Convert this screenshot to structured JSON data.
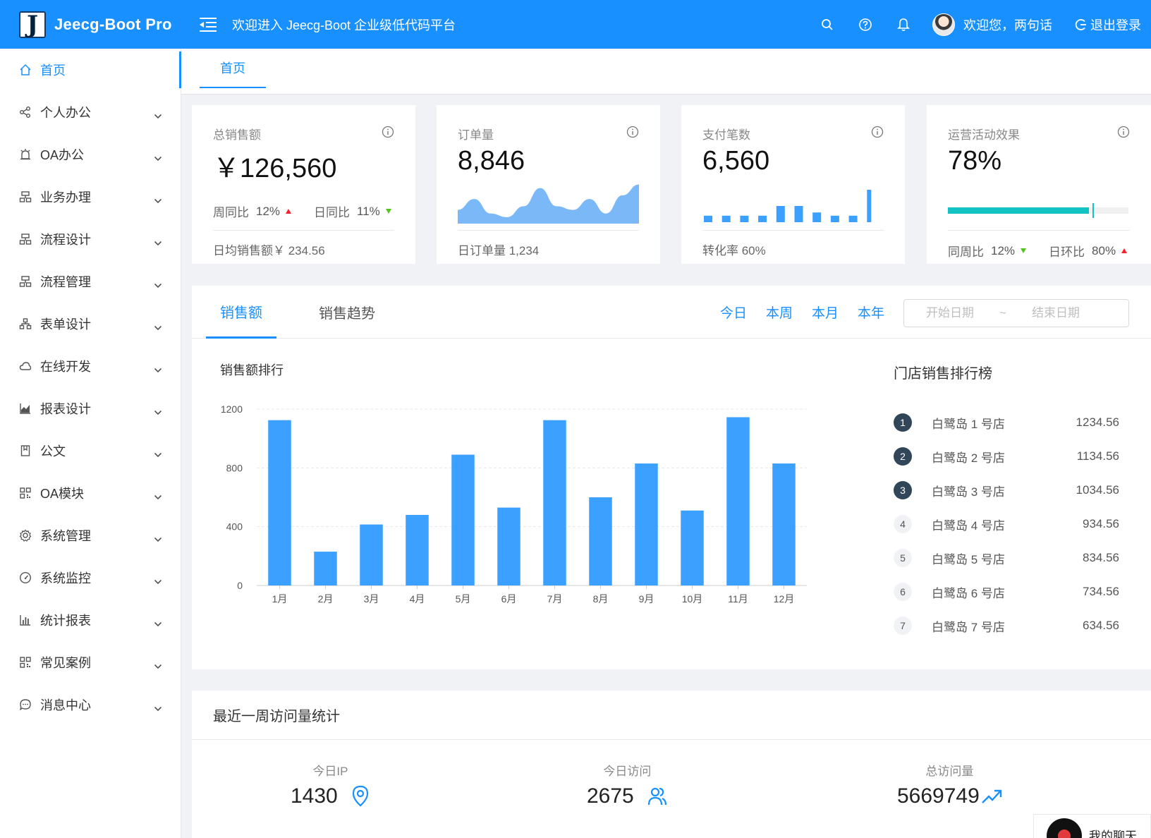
{
  "header": {
    "app_name": "Jeecg-Boot Pro",
    "logo_letter": "J",
    "welcome": "欢迎进入 Jeecg-Boot 企业级低代码平台",
    "user_greeting": "欢迎您，两句话",
    "logout_label": "退出登录",
    "accent": "#1890ff"
  },
  "sidebar": {
    "items": [
      {
        "label": "首页",
        "icon": "home-icon"
      },
      {
        "label": "个人办公",
        "icon": "share-icon"
      },
      {
        "label": "OA办公",
        "icon": "alarm-icon"
      },
      {
        "label": "业务办理",
        "icon": "cluster-icon"
      },
      {
        "label": "流程设计",
        "icon": "cluster-icon"
      },
      {
        "label": "流程管理",
        "icon": "cluster-icon"
      },
      {
        "label": "表单设计",
        "icon": "apartment-icon"
      },
      {
        "label": "在线开发",
        "icon": "cloud-icon"
      },
      {
        "label": "报表设计",
        "icon": "area-chart-icon"
      },
      {
        "label": "公文",
        "icon": "book-icon"
      },
      {
        "label": "OA模块",
        "icon": "qrcode-icon"
      },
      {
        "label": "系统管理",
        "icon": "setting-icon"
      },
      {
        "label": "系统监控",
        "icon": "dashboard-icon"
      },
      {
        "label": "统计报表",
        "icon": "bar-chart-icon"
      },
      {
        "label": "常见案例",
        "icon": "qrcode-icon"
      },
      {
        "label": "消息中心",
        "icon": "message-icon"
      }
    ]
  },
  "tabs": {
    "home": "首页"
  },
  "cards": {
    "sales": {
      "title": "总销售额",
      "value": "￥126,560",
      "week_label": "周同比",
      "week_pct": "12%",
      "day_label": "日同比",
      "day_pct": "11%",
      "footer": "日均销售额￥ 234.56"
    },
    "orders": {
      "title": "订单量",
      "value": "8,846",
      "footer": "日订单量 1,234"
    },
    "payments": {
      "title": "支付笔数",
      "value": "6,560",
      "footer": "转化率 60%"
    },
    "ops": {
      "title": "运营活动效果",
      "value": "78%",
      "progress": 0.78,
      "week_label": "同周比",
      "week_pct": "12%",
      "day_label": "日环比",
      "day_pct": "80%"
    }
  },
  "sales_panel": {
    "tab_sales": "销售额",
    "tab_trend": "销售趋势",
    "ranges": [
      "今日",
      "本周",
      "本月",
      "本年"
    ],
    "start_placeholder": "开始日期",
    "end_placeholder": "结束日期",
    "date_sep": "~",
    "chart_title": "销售额排行",
    "rank_title": "门店销售排行榜",
    "ranking": [
      {
        "rank": "1",
        "name": "白鹭岛 1 号店",
        "value": "1234.56"
      },
      {
        "rank": "2",
        "name": "白鹭岛 2 号店",
        "value": "1134.56"
      },
      {
        "rank": "3",
        "name": "白鹭岛 3 号店",
        "value": "1034.56"
      },
      {
        "rank": "4",
        "name": "白鹭岛 4 号店",
        "value": "934.56"
      },
      {
        "rank": "5",
        "name": "白鹭岛 5 号店",
        "value": "834.56"
      },
      {
        "rank": "6",
        "name": "白鹭岛 6 号店",
        "value": "734.56"
      },
      {
        "rank": "7",
        "name": "白鹭岛 7 号店",
        "value": "634.56"
      }
    ]
  },
  "chart_data": {
    "type": "bar",
    "categories": [
      "1月",
      "2月",
      "3月",
      "4月",
      "5月",
      "6月",
      "7月",
      "8月",
      "9月",
      "10月",
      "11月",
      "12月"
    ],
    "values": [
      1125,
      230,
      415,
      480,
      890,
      530,
      1125,
      600,
      830,
      510,
      1145,
      830
    ],
    "ylim": [
      0,
      1200
    ],
    "yticks": [
      0,
      400,
      800,
      1200
    ],
    "grid": true,
    "color": "#3ba0ff"
  },
  "mini_charts": {
    "orders_area": [
      0.3,
      0.6,
      0.2,
      0.1,
      0.4,
      0.9,
      0.4,
      0.3,
      0.6,
      0.2,
      0.7,
      1.0
    ],
    "payments_bars": [
      0.2,
      0.2,
      0.2,
      0.2,
      0.5,
      0.5,
      0.3,
      0.2,
      0.2,
      1.0
    ]
  },
  "visits": {
    "title": "最近一周访问量统计",
    "ip_label": "今日IP",
    "ip_value": "1430",
    "visit_label": "今日访问",
    "visit_value": "2675",
    "total_label": "总访问量",
    "total_value": "5669749"
  },
  "chat": {
    "label": "我的聊天"
  }
}
